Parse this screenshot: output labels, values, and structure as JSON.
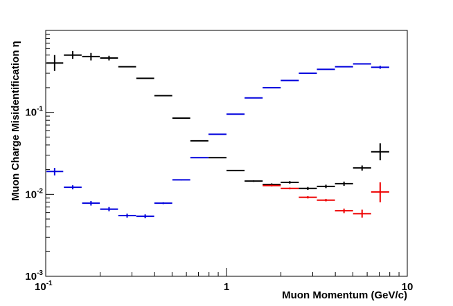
{
  "chart_data": {
    "type": "scatter",
    "title": "",
    "xlabel": "Muon Momentum (GeV/c)",
    "ylabel": "Muon Charge Misidentification η",
    "xscale": "log",
    "yscale": "log",
    "xlim": [
      0.1,
      10
    ],
    "ylim": [
      0.001,
      1
    ],
    "x_tick_labels": [
      {
        "value": 0.1,
        "base": "10",
        "exp": "-1"
      },
      {
        "value": 1,
        "base": "1",
        "exp": ""
      },
      {
        "value": 10,
        "base": "10",
        "exp": ""
      }
    ],
    "y_tick_labels": [
      {
        "value": 0.001,
        "base": "10",
        "exp": "-3"
      },
      {
        "value": 0.01,
        "base": "10",
        "exp": "-2"
      },
      {
        "value": 0.1,
        "base": "10",
        "exp": "-1"
      }
    ],
    "grid": false,
    "legend": "none",
    "series": [
      {
        "color": "#000000",
        "points": [
          {
            "x": 0.112,
            "xlo": 0.101,
            "xhi": 0.125,
            "y": 0.4,
            "ylo": 0.32,
            "yhi": 0.5
          },
          {
            "x": 0.141,
            "xlo": 0.126,
            "xhi": 0.158,
            "y": 0.5,
            "ylo": 0.45,
            "yhi": 0.56
          },
          {
            "x": 0.178,
            "xlo": 0.159,
            "xhi": 0.199,
            "y": 0.48,
            "ylo": 0.43,
            "yhi": 0.53
          },
          {
            "x": 0.224,
            "xlo": 0.2,
            "xhi": 0.251,
            "y": 0.46,
            "ylo": 0.43,
            "yhi": 0.49
          },
          {
            "x": 0.282,
            "xlo": 0.252,
            "xhi": 0.316,
            "y": 0.36,
            "ylo": 0.355,
            "yhi": 0.365
          },
          {
            "x": 0.355,
            "xlo": 0.317,
            "xhi": 0.398,
            "y": 0.26,
            "ylo": 0.257,
            "yhi": 0.263
          },
          {
            "x": 0.447,
            "xlo": 0.399,
            "xhi": 0.501,
            "y": 0.16,
            "ylo": 0.158,
            "yhi": 0.162
          },
          {
            "x": 0.562,
            "xlo": 0.502,
            "xhi": 0.63,
            "y": 0.085,
            "ylo": 0.084,
            "yhi": 0.086
          },
          {
            "x": 0.708,
            "xlo": 0.631,
            "xhi": 0.794,
            "y": 0.045,
            "ylo": 0.0445,
            "yhi": 0.0455
          },
          {
            "x": 0.891,
            "xlo": 0.795,
            "xhi": 1.0,
            "y": 0.028,
            "ylo": 0.0277,
            "yhi": 0.0283
          },
          {
            "x": 1.122,
            "xlo": 1.0,
            "xhi": 1.259,
            "y": 0.0195,
            "ylo": 0.0192,
            "yhi": 0.0198
          },
          {
            "x": 1.413,
            "xlo": 1.259,
            "xhi": 1.585,
            "y": 0.0145,
            "ylo": 0.0142,
            "yhi": 0.0148
          },
          {
            "x": 1.778,
            "xlo": 1.585,
            "xhi": 1.995,
            "y": 0.0132,
            "ylo": 0.0128,
            "yhi": 0.0136
          },
          {
            "x": 2.239,
            "xlo": 1.995,
            "xhi": 2.512,
            "y": 0.014,
            "ylo": 0.0135,
            "yhi": 0.0145
          },
          {
            "x": 2.818,
            "xlo": 2.512,
            "xhi": 3.162,
            "y": 0.0118,
            "ylo": 0.0113,
            "yhi": 0.0123
          },
          {
            "x": 3.548,
            "xlo": 3.162,
            "xhi": 3.981,
            "y": 0.0125,
            "ylo": 0.0119,
            "yhi": 0.0131
          },
          {
            "x": 4.467,
            "xlo": 3.981,
            "xhi": 5.012,
            "y": 0.0135,
            "ylo": 0.0127,
            "yhi": 0.0143
          },
          {
            "x": 5.623,
            "xlo": 5.012,
            "xhi": 6.31,
            "y": 0.021,
            "ylo": 0.0195,
            "yhi": 0.0225
          },
          {
            "x": 7.079,
            "xlo": 6.31,
            "xhi": 7.943,
            "y": 0.033,
            "ylo": 0.026,
            "yhi": 0.042
          }
        ]
      },
      {
        "color": "#0000dd",
        "points": [
          {
            "x": 0.112,
            "xlo": 0.101,
            "xhi": 0.125,
            "y": 0.019,
            "ylo": 0.017,
            "yhi": 0.021
          },
          {
            "x": 0.141,
            "xlo": 0.126,
            "xhi": 0.158,
            "y": 0.0122,
            "ylo": 0.0115,
            "yhi": 0.0129
          },
          {
            "x": 0.178,
            "xlo": 0.159,
            "xhi": 0.199,
            "y": 0.0078,
            "ylo": 0.0073,
            "yhi": 0.0083
          },
          {
            "x": 0.224,
            "xlo": 0.2,
            "xhi": 0.251,
            "y": 0.0066,
            "ylo": 0.0062,
            "yhi": 0.007
          },
          {
            "x": 0.282,
            "xlo": 0.252,
            "xhi": 0.316,
            "y": 0.0055,
            "ylo": 0.0052,
            "yhi": 0.0058
          },
          {
            "x": 0.355,
            "xlo": 0.317,
            "xhi": 0.398,
            "y": 0.0054,
            "ylo": 0.0051,
            "yhi": 0.0057
          },
          {
            "x": 0.447,
            "xlo": 0.399,
            "xhi": 0.501,
            "y": 0.0078,
            "ylo": 0.0076,
            "yhi": 0.008
          },
          {
            "x": 0.562,
            "xlo": 0.502,
            "xhi": 0.63,
            "y": 0.015,
            "ylo": 0.0148,
            "yhi": 0.0152
          },
          {
            "x": 0.708,
            "xlo": 0.631,
            "xhi": 0.794,
            "y": 0.028,
            "ylo": 0.0277,
            "yhi": 0.0283
          },
          {
            "x": 0.891,
            "xlo": 0.795,
            "xhi": 1.0,
            "y": 0.054,
            "ylo": 0.0535,
            "yhi": 0.0545
          },
          {
            "x": 1.122,
            "xlo": 1.0,
            "xhi": 1.259,
            "y": 0.095,
            "ylo": 0.094,
            "yhi": 0.096
          },
          {
            "x": 1.413,
            "xlo": 1.259,
            "xhi": 1.585,
            "y": 0.15,
            "ylo": 0.149,
            "yhi": 0.151
          },
          {
            "x": 1.778,
            "xlo": 1.585,
            "xhi": 1.995,
            "y": 0.2,
            "ylo": 0.199,
            "yhi": 0.201
          },
          {
            "x": 2.239,
            "xlo": 1.995,
            "xhi": 2.512,
            "y": 0.245,
            "ylo": 0.244,
            "yhi": 0.246
          },
          {
            "x": 2.818,
            "xlo": 2.512,
            "xhi": 3.162,
            "y": 0.3,
            "ylo": 0.298,
            "yhi": 0.302
          },
          {
            "x": 3.548,
            "xlo": 3.162,
            "xhi": 3.981,
            "y": 0.335,
            "ylo": 0.333,
            "yhi": 0.337
          },
          {
            "x": 4.467,
            "xlo": 3.981,
            "xhi": 5.012,
            "y": 0.36,
            "ylo": 0.358,
            "yhi": 0.362
          },
          {
            "x": 5.623,
            "xlo": 5.012,
            "xhi": 6.31,
            "y": 0.39,
            "ylo": 0.388,
            "yhi": 0.392
          },
          {
            "x": 7.079,
            "xlo": 6.31,
            "xhi": 7.943,
            "y": 0.355,
            "ylo": 0.34,
            "yhi": 0.37
          }
        ]
      },
      {
        "color": "#ee0000",
        "points": [
          {
            "x": 1.778,
            "xlo": 1.585,
            "xhi": 1.995,
            "y": 0.0128,
            "ylo": 0.0125,
            "yhi": 0.0131
          },
          {
            "x": 2.239,
            "xlo": 1.995,
            "xhi": 2.512,
            "y": 0.0118,
            "ylo": 0.0115,
            "yhi": 0.0121
          },
          {
            "x": 2.818,
            "xlo": 2.512,
            "xhi": 3.162,
            "y": 0.0092,
            "ylo": 0.0089,
            "yhi": 0.0095
          },
          {
            "x": 3.548,
            "xlo": 3.162,
            "xhi": 3.981,
            "y": 0.0085,
            "ylo": 0.0082,
            "yhi": 0.0088
          },
          {
            "x": 4.467,
            "xlo": 3.981,
            "xhi": 5.012,
            "y": 0.0063,
            "ylo": 0.0059,
            "yhi": 0.0067
          },
          {
            "x": 5.623,
            "xlo": 5.012,
            "xhi": 6.31,
            "y": 0.0058,
            "ylo": 0.0052,
            "yhi": 0.0065
          },
          {
            "x": 7.079,
            "xlo": 6.31,
            "xhi": 7.943,
            "y": 0.0107,
            "ylo": 0.008,
            "yhi": 0.014
          }
        ]
      }
    ]
  }
}
